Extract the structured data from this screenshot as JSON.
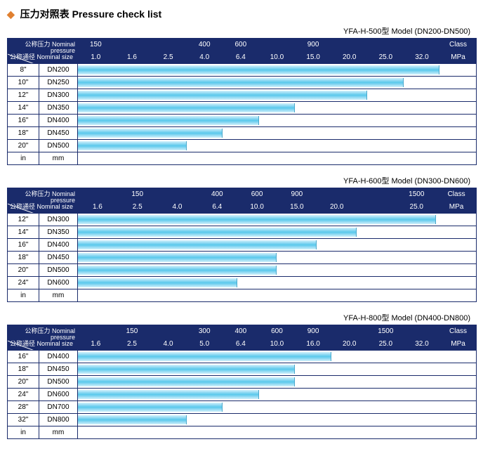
{
  "title_cn": "压力对照表",
  "title_en": "Pressure check list",
  "colors": {
    "header_bg": "#1a2b6b",
    "header_fg": "#ffffff",
    "bar_gradient_top": "#d2f0fb",
    "bar_gradient_mid": "#59c8ec",
    "border": "#1a2b6b",
    "diamond": "#e08030"
  },
  "corner_label_top": "公称压力 Nominal pressure",
  "corner_label_bottom": "公称通径 Nominal size",
  "unit_row": {
    "in": "in",
    "mm": "mm"
  },
  "right_labels": {
    "class": "Class",
    "mpa": "MPa"
  },
  "charts": [
    {
      "model": "YFA-H-500型  Model (DN200-DN500)",
      "class_row": [
        "150",
        "",
        "",
        "400",
        "600",
        "",
        "900",
        "",
        "",
        "",
        "Class"
      ],
      "mpa_row": [
        "1.0",
        "1.6",
        "2.5",
        "4.0",
        "6.4",
        "10.0",
        "15.0",
        "20.0",
        "25.0",
        "32.0",
        "MPa"
      ],
      "n_value_cols": 10,
      "rows": [
        {
          "in": "8\"",
          "dn": "DN200",
          "bar_cols": 10
        },
        {
          "in": "10\"",
          "dn": "DN250",
          "bar_cols": 9
        },
        {
          "in": "12\"",
          "dn": "DN300",
          "bar_cols": 8
        },
        {
          "in": "14\"",
          "dn": "DN350",
          "bar_cols": 6
        },
        {
          "in": "16\"",
          "dn": "DN400",
          "bar_cols": 5
        },
        {
          "in": "18\"",
          "dn": "DN450",
          "bar_cols": 4
        },
        {
          "in": "20\"",
          "dn": "DN500",
          "bar_cols": 3
        }
      ]
    },
    {
      "model": "YFA-H-600型  Model (DN300-DN600)",
      "class_row": [
        "",
        "150",
        "",
        "400",
        "600",
        "900",
        "",
        "",
        "1500",
        "Class"
      ],
      "mpa_row": [
        "1.6",
        "2.5",
        "4.0",
        "6.4",
        "10.0",
        "15.0",
        "20.0",
        "",
        "25.0",
        "MPa"
      ],
      "n_value_cols": 9,
      "rows": [
        {
          "in": "12\"",
          "dn": "DN300",
          "bar_cols": 9
        },
        {
          "in": "14\"",
          "dn": "DN350",
          "bar_cols": 7
        },
        {
          "in": "16\"",
          "dn": "DN400",
          "bar_cols": 6
        },
        {
          "in": "18\"",
          "dn": "DN450",
          "bar_cols": 5
        },
        {
          "in": "20\"",
          "dn": "DN500",
          "bar_cols": 5
        },
        {
          "in": "24\"",
          "dn": "DN600",
          "bar_cols": 4
        }
      ]
    },
    {
      "model": "YFA-H-800型  Model (DN400-DN800)",
      "class_row": [
        "",
        "150",
        "",
        "300",
        "400",
        "600",
        "900",
        "",
        "1500",
        "",
        "Class"
      ],
      "mpa_row": [
        "1.6",
        "2.5",
        "4.0",
        "5.0",
        "6.4",
        "10.0",
        "16.0",
        "20.0",
        "25.0",
        "32.0",
        "MPa"
      ],
      "n_value_cols": 10,
      "rows": [
        {
          "in": "16\"",
          "dn": "DN400",
          "bar_cols": 7
        },
        {
          "in": "18\"",
          "dn": "DN450",
          "bar_cols": 6
        },
        {
          "in": "20\"",
          "dn": "DN500",
          "bar_cols": 6
        },
        {
          "in": "24\"",
          "dn": "DN600",
          "bar_cols": 5
        },
        {
          "in": "28\"",
          "dn": "DN700",
          "bar_cols": 4
        },
        {
          "in": "32\"",
          "dn": "DN800",
          "bar_cols": 3
        }
      ]
    }
  ]
}
